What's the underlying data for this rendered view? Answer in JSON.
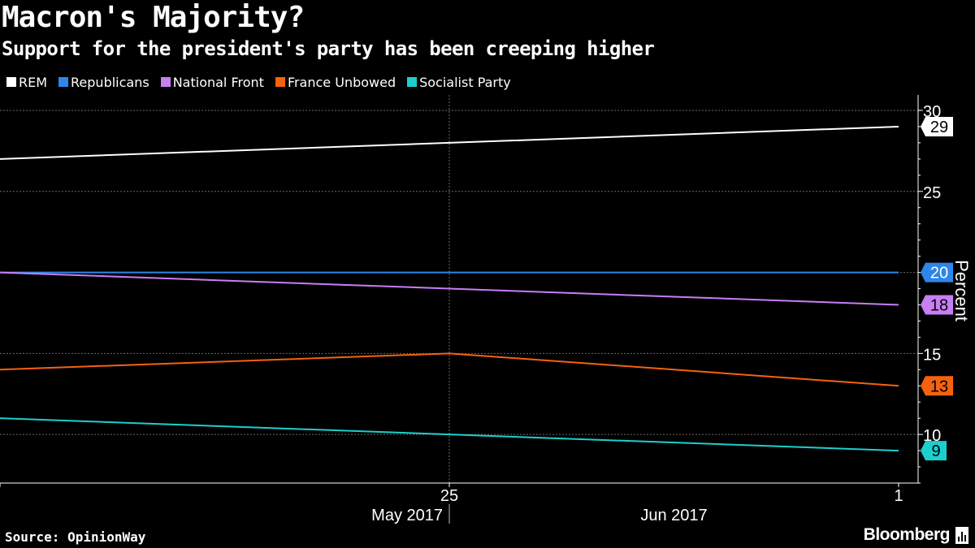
{
  "chart_data": {
    "type": "line",
    "title": "Macron's Majority?",
    "subtitle": "Support for the president's party has been creeping higher",
    "ylabel": "Percent",
    "ylim": [
      7,
      30
    ],
    "yticks": [
      10,
      15,
      20,
      25,
      30
    ],
    "x": [
      "2017-05-18",
      "2017-05-25",
      "2017-06-01"
    ],
    "xticks": [
      {
        "date": "2017-05-25",
        "label": "25"
      },
      {
        "date": "2017-06-01",
        "label": "1"
      }
    ],
    "month_labels": [
      {
        "label": "May 2017",
        "anchor": "2017-05-25"
      },
      {
        "label": "Jun 2017",
        "anchor": "2017-06-01"
      }
    ],
    "series": [
      {
        "name": "REM",
        "color": "#ffffff",
        "values": [
          27,
          28,
          29
        ],
        "end_label": "29",
        "tag_text_color": "#000000"
      },
      {
        "name": "Republicans",
        "color": "#2e86e8",
        "values": [
          20,
          20,
          20
        ],
        "end_label": "20",
        "tag_text_color": "#ffffff"
      },
      {
        "name": "National Front",
        "color": "#c87ef5",
        "values": [
          20,
          19,
          18
        ],
        "end_label": "18",
        "tag_text_color": "#000000"
      },
      {
        "name": "France Unbowed",
        "color": "#f5620f",
        "values": [
          14,
          15,
          13
        ],
        "end_label": "13",
        "tag_text_color": "#000000"
      },
      {
        "name": "Socialist Party",
        "color": "#1ccfcf",
        "values": [
          11,
          10,
          9
        ],
        "end_label": "9",
        "tag_text_color": "#000000"
      }
    ]
  },
  "footer": {
    "source": "Source: OpinionWay",
    "brand": "Bloomberg"
  }
}
